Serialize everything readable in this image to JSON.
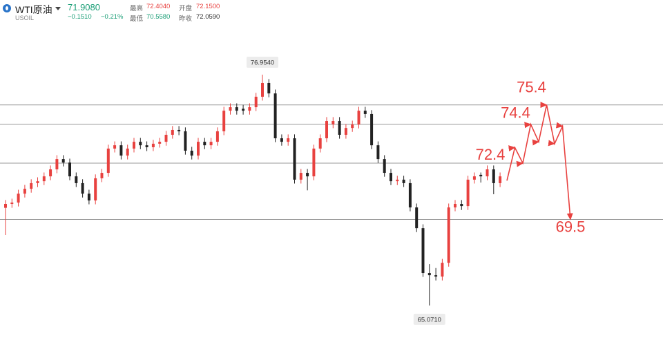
{
  "header": {
    "name": "WTI原油",
    "symbol": "USOIL",
    "price": "71.9080",
    "change": "−0.1510",
    "change_pct": "−0.21%",
    "stats": [
      {
        "label": "最高",
        "value": "72.4040"
      },
      {
        "label": "开盘",
        "value": "72.1500"
      },
      {
        "label": "最低",
        "value": "70.5580"
      },
      {
        "label": "昨收",
        "value": "72.0590"
      }
    ]
  },
  "chart_data": {
    "type": "candlestick",
    "ylim": [
      62.47,
      80.8
    ],
    "up_color": "#e8413f",
    "down_color": "#222222",
    "level_color": "#9a9a9a",
    "forecast_color": "#e8413f",
    "ohlc": [
      [
        70.1,
        70.5,
        68.7,
        70.3
      ],
      [
        70.3,
        70.57,
        70.1,
        70.37
      ],
      [
        70.37,
        71.03,
        70.17,
        70.83
      ],
      [
        70.83,
        71.28,
        70.63,
        71.08
      ],
      [
        71.08,
        71.57,
        70.88,
        71.37
      ],
      [
        71.37,
        71.67,
        71.17,
        71.47
      ],
      [
        71.47,
        71.92,
        71.27,
        71.72
      ],
      [
        71.72,
        72.28,
        71.52,
        72.08
      ],
      [
        72.08,
        72.81,
        71.88,
        72.61
      ],
      [
        72.61,
        72.81,
        72.23,
        72.43
      ],
      [
        72.43,
        72.63,
        71.52,
        71.72
      ],
      [
        71.72,
        71.92,
        71.17,
        71.37
      ],
      [
        71.37,
        71.57,
        70.63,
        70.83
      ],
      [
        70.83,
        71.03,
        70.28,
        70.48
      ],
      [
        70.48,
        71.82,
        70.28,
        71.62
      ],
      [
        71.62,
        72.1,
        71.42,
        71.9
      ],
      [
        71.9,
        73.35,
        71.7,
        73.15
      ],
      [
        73.15,
        73.52,
        72.95,
        73.32
      ],
      [
        73.32,
        73.52,
        72.59,
        72.79
      ],
      [
        72.79,
        73.35,
        72.59,
        73.15
      ],
      [
        73.15,
        73.7,
        72.95,
        73.5
      ],
      [
        73.5,
        73.7,
        73.12,
        73.32
      ],
      [
        73.32,
        73.52,
        73.02,
        73.22
      ],
      [
        73.22,
        73.6,
        73.02,
        73.4
      ],
      [
        73.4,
        73.7,
        73.2,
        73.5
      ],
      [
        73.5,
        74.06,
        73.3,
        73.86
      ],
      [
        73.86,
        74.31,
        73.66,
        74.11
      ],
      [
        74.11,
        74.31,
        73.84,
        74.04
      ],
      [
        74.04,
        74.24,
        72.84,
        73.04
      ],
      [
        73.04,
        73.24,
        72.59,
        72.79
      ],
      [
        72.79,
        73.7,
        72.59,
        73.5
      ],
      [
        73.5,
        73.7,
        73.12,
        73.32
      ],
      [
        73.32,
        73.7,
        73.12,
        73.5
      ],
      [
        73.5,
        74.24,
        73.3,
        74.04
      ],
      [
        74.04,
        75.3,
        73.84,
        75.1
      ],
      [
        75.1,
        75.48,
        74.9,
        75.28
      ],
      [
        75.28,
        75.48,
        74.9,
        75.1
      ],
      [
        75.2,
        75.4,
        74.9,
        75.1
      ],
      [
        75.1,
        75.48,
        74.9,
        75.28
      ],
      [
        75.28,
        76.02,
        75.08,
        75.82
      ],
      [
        75.82,
        76.954,
        75.62,
        76.53
      ],
      [
        76.53,
        76.73,
        75.79,
        75.99
      ],
      [
        75.99,
        76.19,
        73.48,
        73.68
      ],
      [
        73.68,
        73.88,
        73.3,
        73.5
      ],
      [
        73.5,
        73.88,
        73.3,
        73.68
      ],
      [
        73.68,
        73.88,
        71.35,
        71.55
      ],
      [
        71.55,
        72.1,
        71.35,
        71.9
      ],
      [
        71.9,
        72.1,
        71.0,
        71.72
      ],
      [
        71.72,
        73.35,
        71.52,
        73.15
      ],
      [
        73.15,
        73.88,
        72.95,
        73.68
      ],
      [
        73.68,
        74.77,
        73.48,
        74.57
      ],
      [
        74.4,
        74.77,
        74.2,
        74.57
      ],
      [
        74.57,
        74.77,
        73.66,
        73.86
      ],
      [
        73.86,
        74.41,
        73.66,
        74.21
      ],
      [
        74.21,
        74.59,
        74.01,
        74.39
      ],
      [
        74.39,
        75.3,
        74.19,
        75.1
      ],
      [
        75.1,
        75.3,
        74.73,
        74.93
      ],
      [
        74.93,
        75.13,
        73.12,
        73.32
      ],
      [
        73.32,
        73.52,
        72.41,
        72.61
      ],
      [
        72.61,
        72.81,
        71.7,
        71.9
      ],
      [
        71.9,
        72.1,
        71.27,
        71.47
      ],
      [
        71.47,
        71.75,
        71.27,
        71.55
      ],
      [
        71.55,
        71.75,
        71.17,
        71.37
      ],
      [
        71.37,
        71.57,
        69.92,
        70.12
      ],
      [
        70.12,
        70.32,
        68.85,
        69.05
      ],
      [
        69.05,
        69.25,
        66.54,
        66.74
      ],
      [
        66.74,
        67.2,
        65.071,
        66.63
      ],
      [
        66.63,
        67.0,
        66.36,
        66.56
      ],
      [
        66.56,
        67.47,
        66.36,
        67.27
      ],
      [
        67.27,
        70.32,
        67.07,
        70.12
      ],
      [
        70.12,
        70.5,
        69.92,
        70.3
      ],
      [
        70.3,
        70.5,
        69.99,
        70.19
      ],
      [
        70.19,
        71.75,
        69.99,
        71.55
      ],
      [
        71.55,
        71.92,
        71.35,
        71.72
      ],
      [
        71.8,
        71.92,
        71.4,
        71.72
      ],
      [
        71.72,
        72.28,
        71.52,
        72.08
      ],
      [
        72.08,
        72.28,
        70.8,
        71.37
      ],
      [
        71.37,
        71.92,
        71.17,
        71.72
      ]
    ],
    "annotations": [
      {
        "value": 76.954,
        "label": "76.9540"
      },
      {
        "value": 65.071,
        "label": "65.0710"
      }
    ],
    "levels": [
      75.4,
      74.4,
      72.4,
      69.5
    ],
    "forecast": {
      "values": [
        71.5,
        73.2,
        72.4,
        74.4,
        73.5,
        75.4,
        73.4,
        74.3,
        69.5
      ]
    }
  }
}
